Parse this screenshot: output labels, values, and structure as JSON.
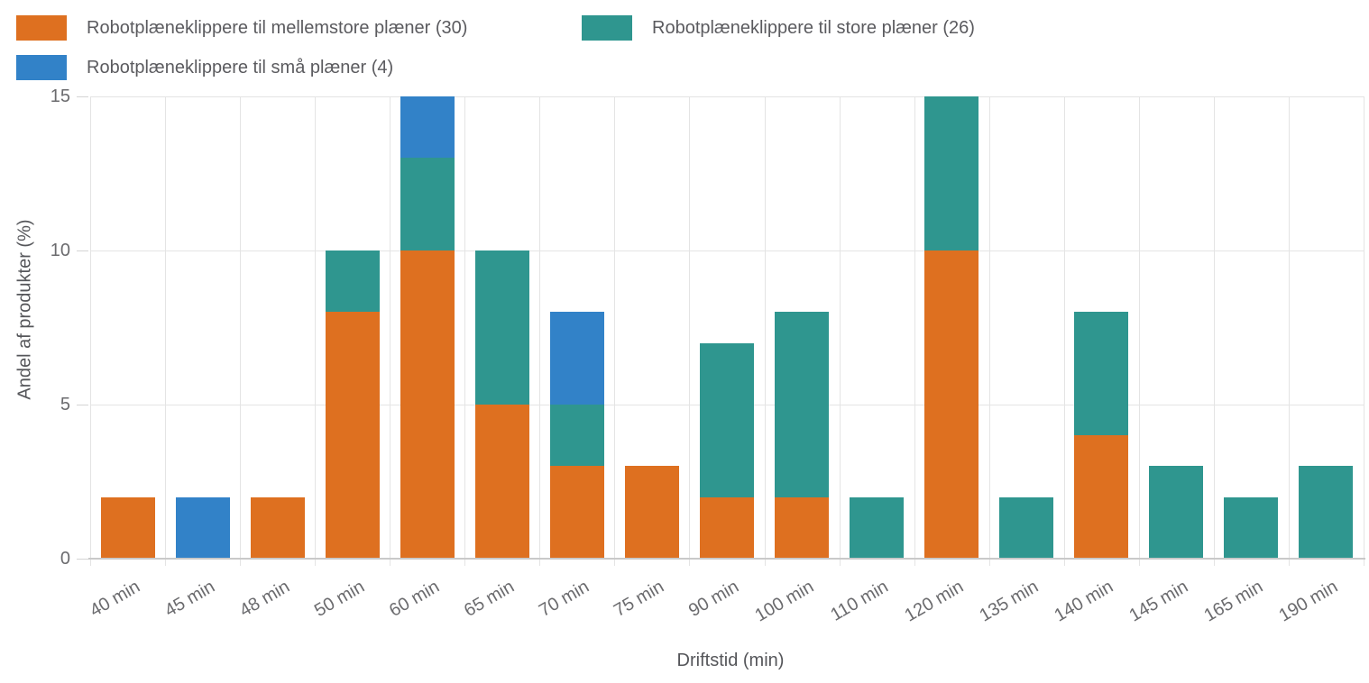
{
  "legend": {
    "items": [
      {
        "label": "Robotplæneklippere til mellemstore plæner (30)",
        "color": "#de7020",
        "row": 1
      },
      {
        "label": "Robotplæneklippere til store plæner (26)",
        "color": "#2f968f",
        "row": 1
      },
      {
        "label": "Robotplæneklippere til små plæner (4)",
        "color": "#3282c8",
        "row": 2
      }
    ]
  },
  "chart_data": {
    "type": "bar",
    "stacked": true,
    "title": "",
    "xlabel": "Driftstid (min)",
    "ylabel": "Andel af produkter (%)",
    "ylim": [
      0,
      15
    ],
    "yticks": [
      0,
      5,
      10,
      15
    ],
    "grid": true,
    "legend_position": "top-left",
    "categories": [
      "40 min",
      "45 min",
      "48 min",
      "50 min",
      "60 min",
      "65 min",
      "70 min",
      "75 min",
      "90 min",
      "100 min",
      "110 min",
      "120 min",
      "135 min",
      "140 min",
      "145 min",
      "165 min",
      "190 min"
    ],
    "series": [
      {
        "name": "Robotplæneklippere til mellemstore plæner (30)",
        "color": "#de7020",
        "values": [
          2,
          0,
          2,
          8,
          10,
          5,
          3,
          3,
          2,
          2,
          0,
          10,
          0,
          4,
          0,
          0,
          0
        ]
      },
      {
        "name": "Robotplæneklippere til store plæner (26)",
        "color": "#2f968f",
        "values": [
          0,
          0,
          0,
          2,
          3,
          5,
          2,
          0,
          5,
          6,
          2,
          5,
          2,
          4,
          3,
          2,
          3
        ]
      },
      {
        "name": "Robotplæneklippere til små plæner (4)",
        "color": "#3282c8",
        "values": [
          0,
          2,
          0,
          0,
          2,
          0,
          3,
          0,
          0,
          0,
          0,
          0,
          0,
          0,
          0,
          0,
          0
        ]
      }
    ],
    "stack_order_bottom_to_top": [
      "mellemstore",
      "store",
      "små"
    ]
  }
}
